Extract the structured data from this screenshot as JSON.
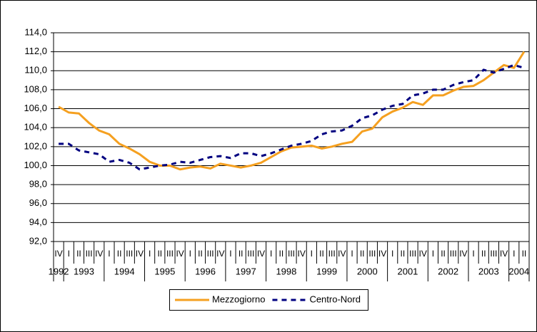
{
  "chart_data": {
    "type": "line",
    "categories": [
      "IV",
      "I",
      "II",
      "III",
      "IV",
      "I",
      "II",
      "III",
      "IV",
      "I",
      "II",
      "III",
      "IV",
      "I",
      "II",
      "III",
      "IV",
      "I",
      "II",
      "III",
      "IV",
      "I",
      "II",
      "III",
      "IV",
      "I",
      "II",
      "III",
      "IV",
      "I",
      "II",
      "III",
      "IV",
      "I",
      "II",
      "III",
      "IV",
      "I",
      "II",
      "III",
      "IV",
      "I",
      "II",
      "III",
      "IV",
      "I",
      "II"
    ],
    "years": [
      "1992",
      "1993",
      "1994",
      "1995",
      "1996",
      "1997",
      "1998",
      "1999",
      "2000",
      "2001",
      "2002",
      "2003",
      "2004"
    ],
    "series": [
      {
        "name": "Mezzogiorno",
        "color": "#f5a020",
        "dash": false,
        "values": [
          106.2,
          105.6,
          105.5,
          104.5,
          103.7,
          103.3,
          102.3,
          101.8,
          101.2,
          100.4,
          100.0,
          100.0,
          99.6,
          99.8,
          99.9,
          99.7,
          100.2,
          100.0,
          99.8,
          100.0,
          100.3,
          100.9,
          101.5,
          101.9,
          102.0,
          102.1,
          101.8,
          102.0,
          102.3,
          102.5,
          103.6,
          103.9,
          105.1,
          105.7,
          106.1,
          106.7,
          106.4,
          107.4,
          107.4,
          107.9,
          108.3,
          108.4,
          109.0,
          109.8,
          110.6,
          110.3,
          112.0
        ]
      },
      {
        "name": "Centro-Nord",
        "color": "#000080",
        "dash": true,
        "values": [
          102.3,
          102.3,
          101.6,
          101.4,
          101.2,
          100.4,
          100.6,
          100.3,
          99.6,
          99.8,
          100.0,
          100.1,
          100.4,
          100.3,
          100.6,
          100.9,
          101.0,
          100.8,
          101.3,
          101.3,
          101.0,
          101.3,
          101.7,
          102.1,
          102.3,
          102.6,
          103.3,
          103.6,
          103.7,
          104.2,
          105.0,
          105.3,
          105.9,
          106.3,
          106.5,
          107.4,
          107.6,
          108.0,
          108.0,
          108.5,
          108.8,
          109.0,
          110.1,
          109.8,
          110.2,
          110.6,
          110.3
        ]
      }
    ],
    "ylim": [
      92,
      114
    ],
    "yticks": [
      {
        "value": 92,
        "label": "92,0"
      },
      {
        "value": 94,
        "label": "94,0"
      },
      {
        "value": 96,
        "label": "96,0"
      },
      {
        "value": 98,
        "label": "98,0"
      },
      {
        "value": 100,
        "label": "100,0"
      },
      {
        "value": 102,
        "label": "102,0"
      },
      {
        "value": 104,
        "label": "104,0"
      },
      {
        "value": 106,
        "label": "106,0"
      },
      {
        "value": 108,
        "label": "108,0"
      },
      {
        "value": 110,
        "label": "110,0"
      },
      {
        "value": 112,
        "label": "112,0"
      },
      {
        "value": 114,
        "label": "114,0"
      }
    ],
    "grid": true,
    "legend": "bottom"
  }
}
